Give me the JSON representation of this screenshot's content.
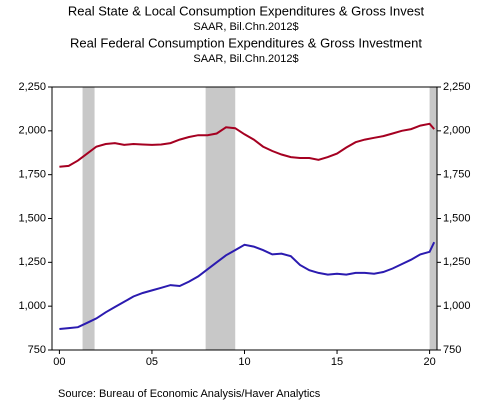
{
  "chart_data": {
    "type": "line",
    "titles": [
      {
        "text": "Real State & Local Consumption Expenditures & Gross Invest",
        "color": "#a50021"
      },
      {
        "text": "SAAR, Bil.Chn.2012$",
        "color": "#a50021"
      },
      {
        "text": "Real Federal Consumption Expenditures & Gross Investment",
        "color": "#2b1bb0"
      },
      {
        "text": "SAAR, Bil.Chn.2012$",
        "color": "#2b1bb0"
      }
    ],
    "source": "Source:  Bureau of Economic Analysis/Haver Analytics",
    "x": [
      2000,
      2000.5,
      2001,
      2001.5,
      2002,
      2002.5,
      2003,
      2003.5,
      2004,
      2004.5,
      2005,
      2005.5,
      2006,
      2006.5,
      2007,
      2007.5,
      2008,
      2008.5,
      2009,
      2009.5,
      2010,
      2010.5,
      2011,
      2011.5,
      2012,
      2012.5,
      2013,
      2013.5,
      2014,
      2014.5,
      2015,
      2015.5,
      2016,
      2016.5,
      2017,
      2017.5,
      2018,
      2018.5,
      2019,
      2019.5,
      2020,
      2020.25
    ],
    "series": [
      {
        "name": "Real State & Local Consumption Expenditures & Gross Invest",
        "color": "#a50021",
        "values": [
          1795,
          1800,
          1830,
          1870,
          1910,
          1925,
          1930,
          1920,
          1925,
          1922,
          1920,
          1922,
          1930,
          1950,
          1965,
          1975,
          1975,
          1985,
          2020,
          2015,
          1980,
          1950,
          1910,
          1885,
          1865,
          1850,
          1845,
          1845,
          1835,
          1850,
          1870,
          1905,
          1935,
          1950,
          1960,
          1970,
          1985,
          2000,
          2010,
          2030,
          2040,
          2010
        ]
      },
      {
        "name": "Real Federal Consumption Expenditures & Gross Investment",
        "color": "#2b1bb0",
        "values": [
          870,
          875,
          880,
          905,
          930,
          965,
          995,
          1025,
          1055,
          1075,
          1090,
          1105,
          1120,
          1115,
          1140,
          1170,
          1210,
          1250,
          1290,
          1320,
          1350,
          1340,
          1320,
          1295,
          1300,
          1285,
          1235,
          1205,
          1190,
          1180,
          1185,
          1180,
          1190,
          1190,
          1185,
          1195,
          1215,
          1240,
          1265,
          1295,
          1310,
          1365
        ]
      }
    ],
    "shaded_periods": [
      [
        2001.25,
        2001.9
      ],
      [
        2007.9,
        2009.5
      ],
      [
        2020.0,
        2020.4
      ]
    ],
    "shade_color": "#c8c8c8",
    "xlim": [
      1999.6,
      2020.4
    ],
    "xticks": [
      {
        "value": 2000,
        "label": "00"
      },
      {
        "value": 2005,
        "label": "05"
      },
      {
        "value": 2010,
        "label": "10"
      },
      {
        "value": 2015,
        "label": "15"
      },
      {
        "value": 2020,
        "label": "20"
      }
    ],
    "ylim": [
      750,
      2250
    ],
    "yticks": [
      750,
      {
        "value": 1000,
        "label": "1,000"
      },
      {
        "value": 1250,
        "label": "1,250"
      },
      {
        "value": 1500,
        "label": "1,500"
      },
      {
        "value": 1750,
        "label": "1,750"
      },
      {
        "value": 2000,
        "label": "2,000"
      },
      {
        "value": 2250,
        "label": "2,250"
      }
    ],
    "y2lim": [
      750,
      2250
    ],
    "y2ticks": [
      750,
      {
        "value": 1000,
        "label": "1,000"
      },
      {
        "value": 1250,
        "label": "1,250"
      },
      {
        "value": 1500,
        "label": "1,500"
      },
      {
        "value": 1750,
        "label": "1,750"
      },
      {
        "value": 2000,
        "label": "2,000"
      },
      {
        "value": 2250,
        "label": "2,250"
      }
    ]
  }
}
